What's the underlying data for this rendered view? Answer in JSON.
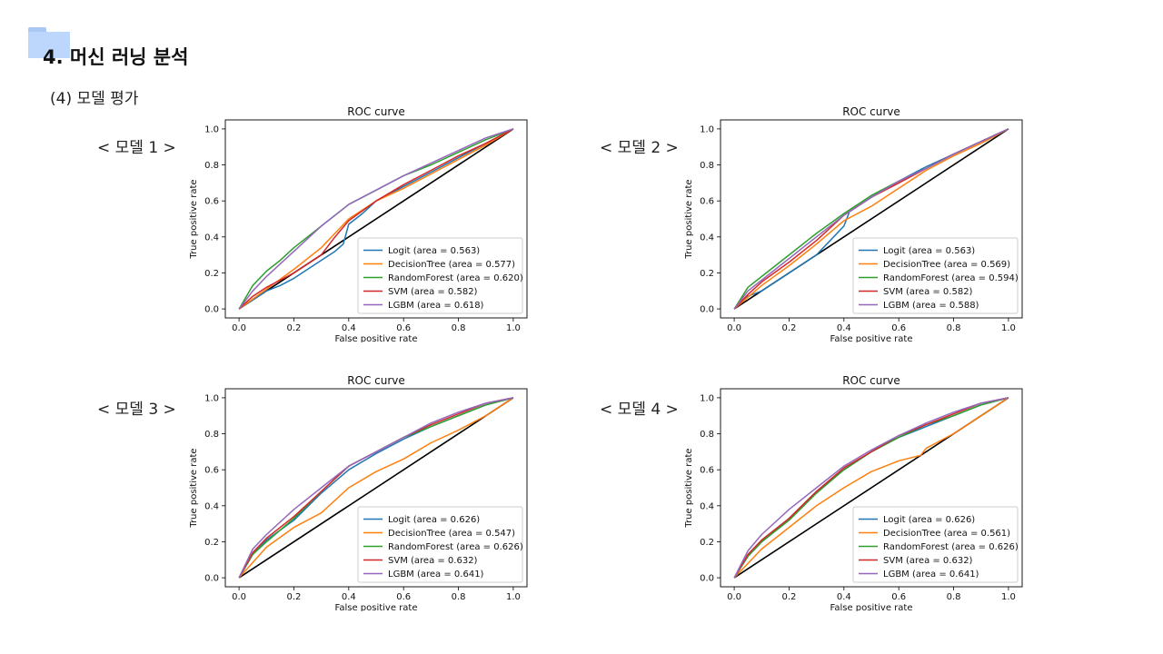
{
  "page": {
    "title": "4. 머신 러닝 분석",
    "subtitle": "(4) 모델 평가"
  },
  "colors": {
    "Logit": "#1f77b4",
    "DecisionTree": "#ff7f0e",
    "RandomForest": "#2ca02c",
    "SVM": "#d62728",
    "LGBM": "#9467bd",
    "diagonal": "#000000"
  },
  "models": [
    {
      "label": "< 모델 1 >"
    },
    {
      "label": "< 모델 2 >"
    },
    {
      "label": "< 모델 3 >"
    },
    {
      "label": "< 모델 4 >"
    }
  ],
  "chart_data": [
    {
      "type": "line",
      "title": "ROC curve",
      "xlabel": "False positive rate",
      "ylabel": "True positive rate",
      "xlim": [
        0,
        1
      ],
      "ylim": [
        0,
        1
      ],
      "xticks": [
        "0.0",
        "0.2",
        "0.4",
        "0.6",
        "0.8",
        "1.0"
      ],
      "yticks": [
        "0.0",
        "0.2",
        "0.4",
        "0.6",
        "0.8",
        "1.0"
      ],
      "legend_position": "lower right",
      "series": [
        {
          "name": "Logit (area = 0.563)",
          "key": "Logit",
          "x": [
            0,
            0.05,
            0.1,
            0.15,
            0.2,
            0.25,
            0.3,
            0.35,
            0.38,
            0.4,
            0.45,
            0.5,
            0.6,
            0.7,
            0.8,
            0.9,
            1.0
          ],
          "y": [
            0,
            0.05,
            0.1,
            0.13,
            0.17,
            0.22,
            0.27,
            0.32,
            0.36,
            0.47,
            0.53,
            0.6,
            0.68,
            0.76,
            0.84,
            0.92,
            1.0
          ]
        },
        {
          "name": "DecisionTree (area = 0.577)",
          "key": "DecisionTree",
          "x": [
            0,
            0.1,
            0.2,
            0.3,
            0.4,
            0.5,
            0.6,
            0.7,
            0.8,
            0.9,
            1.0
          ],
          "y": [
            0,
            0.11,
            0.22,
            0.34,
            0.5,
            0.6,
            0.67,
            0.75,
            0.83,
            0.91,
            1.0
          ]
        },
        {
          "name": "RandomForest (area = 0.620)",
          "key": "RandomForest",
          "x": [
            0,
            0.05,
            0.1,
            0.15,
            0.2,
            0.3,
            0.4,
            0.5,
            0.6,
            0.7,
            0.8,
            0.9,
            1.0
          ],
          "y": [
            0,
            0.13,
            0.21,
            0.27,
            0.34,
            0.46,
            0.58,
            0.66,
            0.74,
            0.8,
            0.87,
            0.94,
            1.0
          ]
        },
        {
          "name": "SVM (area = 0.582)",
          "key": "SVM",
          "x": [
            0,
            0.05,
            0.1,
            0.2,
            0.3,
            0.35,
            0.4,
            0.5,
            0.6,
            0.7,
            0.8,
            0.9,
            1.0
          ],
          "y": [
            0,
            0.07,
            0.12,
            0.2,
            0.3,
            0.4,
            0.49,
            0.6,
            0.69,
            0.77,
            0.85,
            0.92,
            1.0
          ]
        },
        {
          "name": "LGBM (area = 0.618)",
          "key": "LGBM",
          "x": [
            0,
            0.05,
            0.1,
            0.2,
            0.3,
            0.4,
            0.5,
            0.6,
            0.7,
            0.8,
            0.9,
            1.0
          ],
          "y": [
            0,
            0.1,
            0.18,
            0.32,
            0.46,
            0.58,
            0.66,
            0.74,
            0.81,
            0.88,
            0.95,
            1.0
          ]
        }
      ]
    },
    {
      "type": "line",
      "title": "ROC curve",
      "xlabel": "False positive rate",
      "ylabel": "True positive rate",
      "xlim": [
        0,
        1
      ],
      "ylim": [
        0,
        1
      ],
      "xticks": [
        "0.0",
        "0.2",
        "0.4",
        "0.6",
        "0.8",
        "1.0"
      ],
      "yticks": [
        "0.0",
        "0.2",
        "0.4",
        "0.6",
        "0.8",
        "1.0"
      ],
      "legend_position": "lower right",
      "series": [
        {
          "name": "Logit (area = 0.563)",
          "key": "Logit",
          "x": [
            0,
            0.05,
            0.1,
            0.15,
            0.2,
            0.25,
            0.3,
            0.35,
            0.4,
            0.42,
            0.5,
            0.6,
            0.7,
            0.8,
            0.9,
            1.0
          ],
          "y": [
            0,
            0.07,
            0.1,
            0.15,
            0.2,
            0.25,
            0.3,
            0.38,
            0.46,
            0.54,
            0.62,
            0.71,
            0.79,
            0.86,
            0.93,
            1.0
          ]
        },
        {
          "name": "DecisionTree (area = 0.569)",
          "key": "DecisionTree",
          "x": [
            0,
            0.1,
            0.2,
            0.3,
            0.4,
            0.5,
            0.6,
            0.7,
            0.8,
            0.9,
            1.0
          ],
          "y": [
            0,
            0.13,
            0.24,
            0.36,
            0.49,
            0.57,
            0.67,
            0.77,
            0.85,
            0.92,
            1.0
          ]
        },
        {
          "name": "RandomForest (area = 0.594)",
          "key": "RandomForest",
          "x": [
            0,
            0.05,
            0.1,
            0.2,
            0.3,
            0.4,
            0.5,
            0.6,
            0.7,
            0.8,
            0.9,
            1.0
          ],
          "y": [
            0,
            0.12,
            0.18,
            0.3,
            0.42,
            0.53,
            0.63,
            0.71,
            0.78,
            0.86,
            0.93,
            1.0
          ]
        },
        {
          "name": "SVM (area = 0.582)",
          "key": "SVM",
          "x": [
            0,
            0.05,
            0.1,
            0.2,
            0.3,
            0.4,
            0.5,
            0.6,
            0.7,
            0.8,
            0.9,
            1.0
          ],
          "y": [
            0,
            0.08,
            0.15,
            0.26,
            0.38,
            0.52,
            0.62,
            0.7,
            0.78,
            0.86,
            0.93,
            1.0
          ]
        },
        {
          "name": "LGBM (area = 0.588)",
          "key": "LGBM",
          "x": [
            0,
            0.05,
            0.1,
            0.2,
            0.3,
            0.4,
            0.5,
            0.6,
            0.7,
            0.8,
            0.9,
            1.0
          ],
          "y": [
            0,
            0.1,
            0.16,
            0.28,
            0.4,
            0.52,
            0.62,
            0.71,
            0.78,
            0.86,
            0.93,
            1.0
          ]
        }
      ]
    },
    {
      "type": "line",
      "title": "ROC curve",
      "xlabel": "False positive rate",
      "ylabel": "True positive rate",
      "xlim": [
        0,
        1
      ],
      "ylim": [
        0,
        1
      ],
      "xticks": [
        "0.0",
        "0.2",
        "0.4",
        "0.6",
        "0.8",
        "1.0"
      ],
      "yticks": [
        "0.0",
        "0.2",
        "0.4",
        "0.6",
        "0.8",
        "1.0"
      ],
      "legend_position": "lower right",
      "series": [
        {
          "name": "Logit (area = 0.626)",
          "key": "Logit",
          "x": [
            0,
            0.05,
            0.1,
            0.2,
            0.3,
            0.4,
            0.5,
            0.6,
            0.7,
            0.8,
            0.9,
            1.0
          ],
          "y": [
            0,
            0.13,
            0.21,
            0.32,
            0.47,
            0.6,
            0.69,
            0.77,
            0.84,
            0.9,
            0.96,
            1.0
          ]
        },
        {
          "name": "DecisionTree (area = 0.547)",
          "key": "DecisionTree",
          "x": [
            0,
            0.1,
            0.2,
            0.3,
            0.4,
            0.5,
            0.6,
            0.7,
            0.8,
            0.9,
            1.0
          ],
          "y": [
            0,
            0.17,
            0.28,
            0.36,
            0.5,
            0.59,
            0.66,
            0.75,
            0.82,
            0.9,
            1.0
          ]
        },
        {
          "name": "RandomForest (area = 0.626)",
          "key": "RandomForest",
          "x": [
            0,
            0.05,
            0.1,
            0.2,
            0.3,
            0.4,
            0.5,
            0.6,
            0.7,
            0.8,
            0.9,
            1.0
          ],
          "y": [
            0,
            0.13,
            0.2,
            0.33,
            0.48,
            0.62,
            0.7,
            0.78,
            0.84,
            0.9,
            0.96,
            1.0
          ]
        },
        {
          "name": "SVM (area = 0.632)",
          "key": "SVM",
          "x": [
            0,
            0.05,
            0.1,
            0.2,
            0.3,
            0.4,
            0.5,
            0.6,
            0.7,
            0.8,
            0.9,
            1.0
          ],
          "y": [
            0,
            0.14,
            0.22,
            0.34,
            0.48,
            0.62,
            0.7,
            0.78,
            0.85,
            0.91,
            0.97,
            1.0
          ]
        },
        {
          "name": "LGBM (area = 0.641)",
          "key": "LGBM",
          "x": [
            0,
            0.05,
            0.1,
            0.2,
            0.3,
            0.4,
            0.5,
            0.6,
            0.7,
            0.8,
            0.9,
            1.0
          ],
          "y": [
            0,
            0.16,
            0.24,
            0.38,
            0.5,
            0.62,
            0.7,
            0.78,
            0.86,
            0.92,
            0.97,
            1.0
          ]
        }
      ]
    },
    {
      "type": "line",
      "title": "ROC curve",
      "xlabel": "False positive rate",
      "ylabel": "True positive rate",
      "xlim": [
        0,
        1
      ],
      "ylim": [
        0,
        1
      ],
      "xticks": [
        "0.0",
        "0.2",
        "0.4",
        "0.6",
        "0.8",
        "1.0"
      ],
      "yticks": [
        "0.0",
        "0.2",
        "0.4",
        "0.6",
        "0.8",
        "1.0"
      ],
      "legend_position": "lower right",
      "series": [
        {
          "name": "Logit (area = 0.626)",
          "key": "Logit",
          "x": [
            0,
            0.05,
            0.1,
            0.2,
            0.3,
            0.4,
            0.5,
            0.6,
            0.7,
            0.8,
            0.9,
            1.0
          ],
          "y": [
            0,
            0.12,
            0.2,
            0.33,
            0.48,
            0.6,
            0.7,
            0.78,
            0.84,
            0.9,
            0.96,
            1.0
          ]
        },
        {
          "name": "DecisionTree (area = 0.561)",
          "key": "DecisionTree",
          "x": [
            0,
            0.1,
            0.2,
            0.3,
            0.4,
            0.5,
            0.6,
            0.68,
            0.7,
            0.8,
            0.9,
            1.0
          ],
          "y": [
            0,
            0.16,
            0.28,
            0.4,
            0.5,
            0.59,
            0.65,
            0.68,
            0.72,
            0.8,
            0.9,
            1.0
          ]
        },
        {
          "name": "RandomForest (area = 0.626)",
          "key": "RandomForest",
          "x": [
            0,
            0.05,
            0.1,
            0.2,
            0.3,
            0.4,
            0.5,
            0.6,
            0.7,
            0.8,
            0.9,
            1.0
          ],
          "y": [
            0,
            0.12,
            0.2,
            0.32,
            0.47,
            0.6,
            0.7,
            0.78,
            0.85,
            0.9,
            0.96,
            1.0
          ]
        },
        {
          "name": "SVM (area = 0.632)",
          "key": "SVM",
          "x": [
            0,
            0.05,
            0.1,
            0.2,
            0.3,
            0.4,
            0.5,
            0.6,
            0.7,
            0.8,
            0.9,
            1.0
          ],
          "y": [
            0,
            0.13,
            0.21,
            0.33,
            0.48,
            0.61,
            0.7,
            0.79,
            0.85,
            0.91,
            0.97,
            1.0
          ]
        },
        {
          "name": "LGBM (area = 0.641)",
          "key": "LGBM",
          "x": [
            0,
            0.05,
            0.1,
            0.2,
            0.3,
            0.4,
            0.5,
            0.6,
            0.7,
            0.8,
            0.9,
            1.0
          ],
          "y": [
            0,
            0.15,
            0.24,
            0.38,
            0.5,
            0.62,
            0.71,
            0.79,
            0.86,
            0.92,
            0.97,
            1.0
          ]
        }
      ]
    }
  ]
}
